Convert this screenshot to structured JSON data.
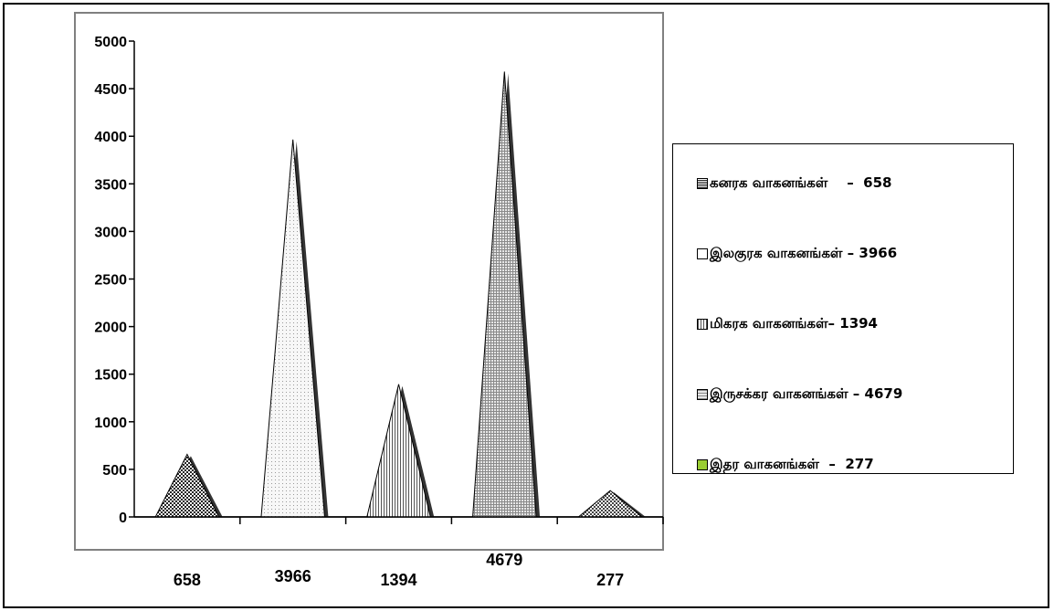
{
  "chart_data": {
    "type": "area",
    "categories": [
      "658",
      "3966",
      "1394",
      "4679",
      "277"
    ],
    "series": [
      {
        "name": "கனரக வாகனங்கள்",
        "values": [
          658,
          0,
          0,
          0,
          0
        ],
        "color": "#6b6b6b",
        "pattern": "dense-dots"
      },
      {
        "name": "இலகுரக வாகனங்கள்",
        "values": [
          0,
          3966,
          0,
          0,
          0
        ],
        "color": "#ececec",
        "pattern": "light-dots"
      },
      {
        "name": "மிகரக வாகனங்கள்",
        "values": [
          0,
          0,
          1394,
          0,
          0
        ],
        "color": "#d0d0d0",
        "pattern": "vertical-lines"
      },
      {
        "name": "இருசக்கர வாகனங்கள்",
        "values": [
          0,
          0,
          0,
          4679,
          0
        ],
        "color": "#bdbdbd",
        "pattern": "grid"
      },
      {
        "name": "இதர வாகனங்கள்",
        "values": [
          0,
          0,
          0,
          0,
          277
        ],
        "color": "#9acd32",
        "pattern": "checker"
      }
    ],
    "ylim": [
      0,
      5000
    ],
    "yticks": [
      "0",
      "500",
      "1000",
      "1500",
      "2000",
      "2500",
      "3000",
      "3500",
      "4000",
      "4500",
      "5000"
    ],
    "legend": {
      "position": "right",
      "entries": [
        "கனரக வாகனங்கள்    –  658",
        "இலகுரக வாகனங்கள் – 3966",
        "மிகரக வாகனங்கள்– 1394",
        "இருசக்கர வாகனங்கள் – 4679",
        "இதர வாகனங்கள்  –  277"
      ]
    },
    "grid": false
  }
}
